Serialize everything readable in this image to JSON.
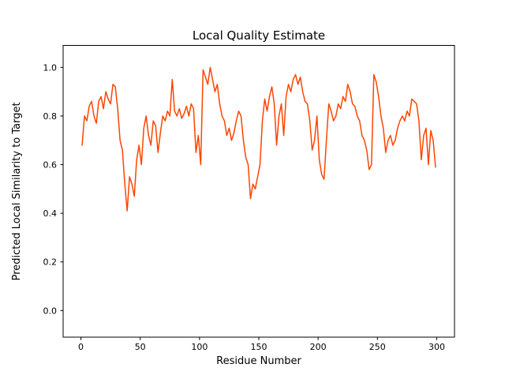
{
  "figure": {
    "background": "#ffffff"
  },
  "chart_data": {
    "type": "line",
    "title": "Local Quality Estimate",
    "xlabel": "Residue Number",
    "ylabel": "Predicted Local Similarity to Target",
    "xlim": [
      -15,
      315
    ],
    "ylim": [
      -0.11,
      1.09
    ],
    "xticks": [
      0,
      50,
      100,
      150,
      200,
      250,
      300
    ],
    "yticks": [
      0.0,
      0.2,
      0.4,
      0.6,
      0.8,
      1.0
    ],
    "grid": false,
    "legend": "none",
    "line_color": "#ff4500",
    "line_width": 1.5,
    "x": [
      1,
      3,
      5,
      7,
      9,
      11,
      13,
      15,
      17,
      19,
      21,
      23,
      25,
      27,
      29,
      31,
      33,
      35,
      37,
      39,
      41,
      43,
      45,
      47,
      49,
      51,
      53,
      55,
      57,
      59,
      61,
      63,
      65,
      67,
      69,
      71,
      73,
      75,
      77,
      79,
      81,
      83,
      85,
      87,
      89,
      91,
      93,
      95,
      97,
      99,
      101,
      103,
      105,
      107,
      109,
      111,
      113,
      115,
      117,
      119,
      121,
      123,
      125,
      127,
      129,
      131,
      133,
      135,
      137,
      139,
      141,
      143,
      145,
      147,
      149,
      151,
      153,
      155,
      157,
      159,
      161,
      163,
      165,
      167,
      169,
      171,
      173,
      175,
      177,
      179,
      181,
      183,
      185,
      187,
      189,
      191,
      193,
      195,
      197,
      199,
      201,
      203,
      205,
      207,
      209,
      211,
      213,
      215,
      217,
      219,
      221,
      223,
      225,
      227,
      229,
      231,
      233,
      235,
      237,
      239,
      241,
      243,
      245,
      247,
      249,
      251,
      253,
      255,
      257,
      259,
      261,
      263,
      265,
      267,
      269,
      271,
      273,
      275,
      277,
      279,
      281,
      283,
      285,
      287,
      289,
      291,
      293,
      295,
      297,
      299
    ],
    "y": [
      0.68,
      0.8,
      0.78,
      0.84,
      0.86,
      0.8,
      0.77,
      0.86,
      0.88,
      0.83,
      0.9,
      0.87,
      0.85,
      0.93,
      0.92,
      0.83,
      0.7,
      0.66,
      0.52,
      0.41,
      0.55,
      0.52,
      0.47,
      0.62,
      0.68,
      0.6,
      0.75,
      0.8,
      0.72,
      0.68,
      0.78,
      0.76,
      0.65,
      0.73,
      0.8,
      0.78,
      0.82,
      0.8,
      0.95,
      0.82,
      0.8,
      0.83,
      0.79,
      0.81,
      0.84,
      0.8,
      0.85,
      0.83,
      0.65,
      0.72,
      0.6,
      0.99,
      0.96,
      0.93,
      1.0,
      0.95,
      0.9,
      0.93,
      0.85,
      0.8,
      0.78,
      0.72,
      0.75,
      0.7,
      0.73,
      0.78,
      0.82,
      0.8,
      0.7,
      0.63,
      0.6,
      0.46,
      0.52,
      0.5,
      0.55,
      0.6,
      0.78,
      0.87,
      0.82,
      0.88,
      0.92,
      0.85,
      0.68,
      0.8,
      0.85,
      0.72,
      0.88,
      0.93,
      0.9,
      0.95,
      0.97,
      0.93,
      0.96,
      0.9,
      0.86,
      0.85,
      0.78,
      0.66,
      0.7,
      0.8,
      0.62,
      0.56,
      0.54,
      0.7,
      0.85,
      0.82,
      0.78,
      0.8,
      0.85,
      0.83,
      0.88,
      0.86,
      0.93,
      0.9,
      0.85,
      0.84,
      0.8,
      0.78,
      0.72,
      0.7,
      0.66,
      0.58,
      0.6,
      0.97,
      0.94,
      0.88,
      0.8,
      0.75,
      0.65,
      0.7,
      0.72,
      0.68,
      0.7,
      0.75,
      0.78,
      0.8,
      0.78,
      0.82,
      0.8,
      0.87,
      0.86,
      0.85,
      0.78,
      0.62,
      0.72,
      0.75,
      0.6,
      0.74,
      0.7,
      0.59
    ]
  }
}
